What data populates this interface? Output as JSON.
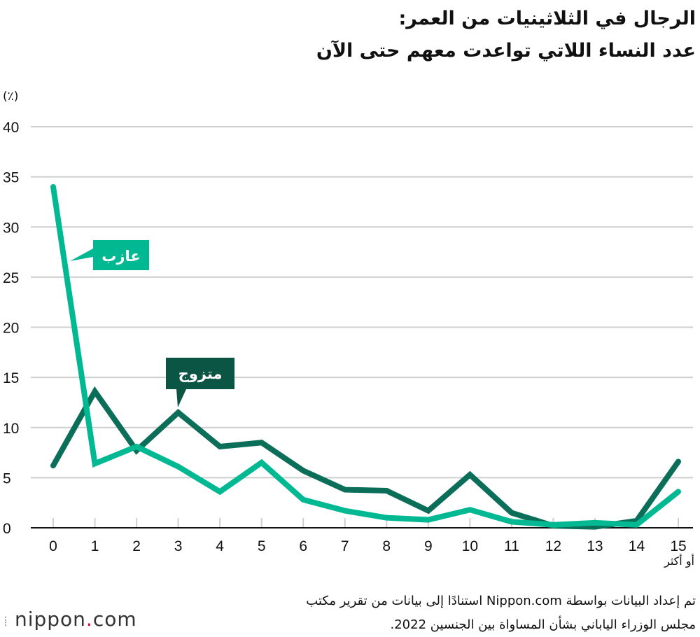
{
  "title": {
    "line1": "الرجال في الثلاثينيات من العمر:",
    "line2": "عدد النساء اللاتي تواعدت معهم حتى الآن"
  },
  "source": {
    "line1": "تم إعداد البيانات بواسطة Nippon.com استنادًا إلى بيانات من تقرير مكتب",
    "line2": "مجلس الوزراء الياباني بشأن المساواة بين الجنسين 2022."
  },
  "logo": {
    "text_main": "nippon",
    "dot": ".",
    "text_tld": "com"
  },
  "chart_data": {
    "type": "line",
    "ylabel": "(٪)",
    "x_last_suffix": "أو أكثر",
    "ylim": [
      0,
      40
    ],
    "yticks": [
      0,
      5,
      10,
      15,
      20,
      25,
      30,
      35,
      40
    ],
    "grid": true,
    "x": [
      0,
      1,
      2,
      3,
      4,
      5,
      6,
      7,
      8,
      9,
      10,
      11,
      12,
      13,
      14,
      15
    ],
    "series": [
      {
        "name": "عازب",
        "color": "#00b891",
        "values": [
          34.0,
          6.4,
          8.1,
          6.1,
          3.6,
          6.5,
          2.8,
          1.7,
          1.0,
          0.8,
          1.8,
          0.6,
          0.3,
          0.5,
          0.3,
          3.6
        ]
      },
      {
        "name": "متزوج",
        "color": "#0b6e58",
        "label_color": "#0b5544",
        "values": [
          6.2,
          13.6,
          7.7,
          11.5,
          8.1,
          8.5,
          5.7,
          3.8,
          3.7,
          1.7,
          5.3,
          1.5,
          0.2,
          0.1,
          0.7,
          6.6
        ]
      }
    ]
  }
}
